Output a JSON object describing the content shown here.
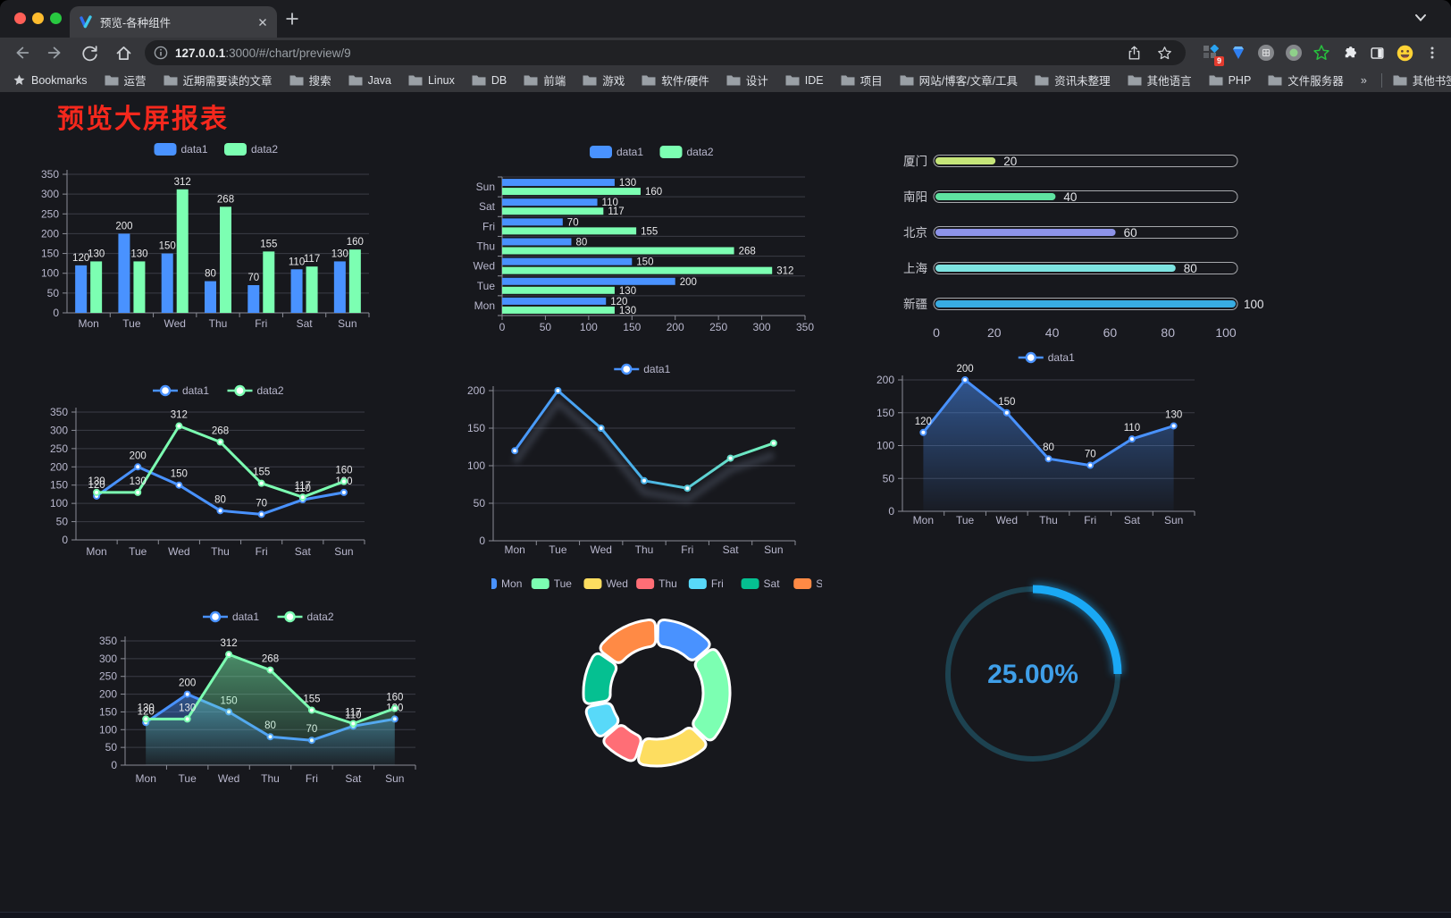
{
  "browser": {
    "tab": {
      "title": "预览-各种组件"
    },
    "toolbar": {
      "url_host": "127.0.0.1",
      "url_rest": ":3000/#/chart/preview/9",
      "extension_badge": "9"
    },
    "bookmarks": {
      "label": "Bookmarks",
      "items": [
        "运营",
        "近期需要读的文章",
        "搜索",
        "Java",
        "Linux",
        "DB",
        "前端",
        "游戏",
        "软件/硬件",
        "设计",
        "IDE",
        "项目",
        "网站/博客/文章/工具",
        "资讯未整理",
        "其他语言",
        "PHP",
        "文件服务器"
      ],
      "overflow": "»",
      "other": "其他书签"
    }
  },
  "page": {
    "title": "预览大屏报表",
    "title_color": "#f5281d",
    "background": "#17181d"
  },
  "palette": [
    "#4992ff",
    "#7cffb2",
    "#fddd60",
    "#ff6e76",
    "#58d9f9",
    "#05c091",
    "#ff8a45"
  ],
  "chart_data": [
    {
      "id": "c1",
      "type": "bar",
      "orientation": "vertical",
      "categories": [
        "Mon",
        "Tue",
        "Wed",
        "Thu",
        "Fri",
        "Sat",
        "Sun"
      ],
      "series": [
        {
          "name": "data1",
          "color": "#4992ff",
          "values": [
            120,
            200,
            150,
            80,
            70,
            110,
            130
          ]
        },
        {
          "name": "data2",
          "color": "#7cffb2",
          "values": [
            130,
            130,
            312,
            268,
            155,
            117,
            160
          ]
        }
      ],
      "ylim": [
        0,
        350
      ],
      "yticks": [
        0,
        50,
        100,
        150,
        200,
        250,
        300,
        350
      ],
      "legend_position": "top",
      "grid": true,
      "labels": true
    },
    {
      "id": "c2",
      "type": "bar",
      "orientation": "horizontal",
      "categories": [
        "Mon",
        "Tue",
        "Wed",
        "Thu",
        "Fri",
        "Sat",
        "Sun"
      ],
      "series": [
        {
          "name": "data1",
          "color": "#4992ff",
          "values": [
            120,
            200,
            150,
            80,
            70,
            110,
            130
          ]
        },
        {
          "name": "data2",
          "color": "#7cffb2",
          "values": [
            130,
            130,
            312,
            268,
            155,
            117,
            160
          ]
        }
      ],
      "xlim": [
        0,
        350
      ],
      "xticks": [
        0,
        50,
        100,
        150,
        200,
        250,
        300,
        350
      ],
      "legend_position": "top",
      "grid": true,
      "labels": true
    },
    {
      "id": "c3",
      "type": "bar",
      "subtype": "progress",
      "categories": [
        "厦门",
        "南阳",
        "北京",
        "上海",
        "新疆"
      ],
      "values": [
        20,
        40,
        60,
        80,
        100
      ],
      "colors": [
        "#c6e579",
        "#5fe3a1",
        "#8d93e8",
        "#7de3e1",
        "#38ace2"
      ],
      "xlim": [
        0,
        100
      ],
      "xticks": [
        0,
        20,
        40,
        60,
        80,
        100
      ],
      "labels": true
    },
    {
      "id": "c4",
      "type": "line",
      "categories": [
        "Mon",
        "Tue",
        "Wed",
        "Thu",
        "Fri",
        "Sat",
        "Sun"
      ],
      "series": [
        {
          "name": "data1",
          "color": "#4992ff",
          "values": [
            120,
            200,
            150,
            80,
            70,
            110,
            130
          ]
        },
        {
          "name": "data2",
          "color": "#7cffb2",
          "values": [
            130,
            130,
            312,
            268,
            155,
            117,
            160
          ]
        }
      ],
      "ylim": [
        0,
        350
      ],
      "yticks": [
        0,
        50,
        100,
        150,
        200,
        250,
        300,
        350
      ],
      "legend_position": "top",
      "grid": true,
      "labels": true,
      "area": false
    },
    {
      "id": "c5",
      "type": "line",
      "categories": [
        "Mon",
        "Tue",
        "Wed",
        "Thu",
        "Fri",
        "Sat",
        "Sun"
      ],
      "series": [
        {
          "name": "data1",
          "color": "#4992ff",
          "gradient": [
            "#4992ff",
            "#4ab3e8",
            "#7cffb2"
          ],
          "values": [
            120,
            200,
            150,
            80,
            70,
            110,
            130
          ]
        }
      ],
      "ylim": [
        0,
        200
      ],
      "yticks": [
        0,
        50,
        100,
        150,
        200
      ],
      "legend_position": "top",
      "grid": true,
      "labels": false,
      "shadow": true
    },
    {
      "id": "c6",
      "type": "line",
      "categories": [
        "Mon",
        "Tue",
        "Wed",
        "Thu",
        "Fri",
        "Sat",
        "Sun"
      ],
      "series": [
        {
          "name": "data1",
          "color": "#4992ff",
          "values": [
            120,
            200,
            150,
            80,
            70,
            110,
            130
          ],
          "area": true
        }
      ],
      "ylim": [
        0,
        200
      ],
      "yticks": [
        0,
        50,
        100,
        150,
        200
      ],
      "legend_position": "top",
      "grid": true,
      "labels": true
    },
    {
      "id": "c7",
      "type": "line",
      "categories": [
        "Mon",
        "Tue",
        "Wed",
        "Thu",
        "Fri",
        "Sat",
        "Sun"
      ],
      "series": [
        {
          "name": "data1",
          "color": "#4992ff",
          "values": [
            120,
            200,
            150,
            80,
            70,
            110,
            130
          ],
          "area": true
        },
        {
          "name": "data2",
          "color": "#7cffb2",
          "values": [
            130,
            130,
            312,
            268,
            155,
            117,
            160
          ],
          "area": true
        }
      ],
      "ylim": [
        0,
        350
      ],
      "yticks": [
        0,
        50,
        100,
        150,
        200,
        250,
        300,
        350
      ],
      "legend_position": "top",
      "grid": true,
      "labels": true
    },
    {
      "id": "c8",
      "type": "pie",
      "subtype": "donut",
      "categories": [
        "Mon",
        "Tue",
        "Wed",
        "Thu",
        "Fri",
        "Sat",
        "Sun"
      ],
      "values": [
        120,
        200,
        150,
        80,
        70,
        110,
        130
      ],
      "colors": [
        "#4992ff",
        "#7cffb2",
        "#fddd60",
        "#ff6e76",
        "#58d9f9",
        "#05c091",
        "#ff8a45"
      ],
      "legend_position": "top",
      "border_color": "#ffffff"
    },
    {
      "id": "c9",
      "type": "gauge",
      "value": 25,
      "max": 100,
      "label": "25.00%",
      "color": "#1aa9f5",
      "track_color": "#1d4250",
      "text_color": "#3f9fe9"
    }
  ]
}
